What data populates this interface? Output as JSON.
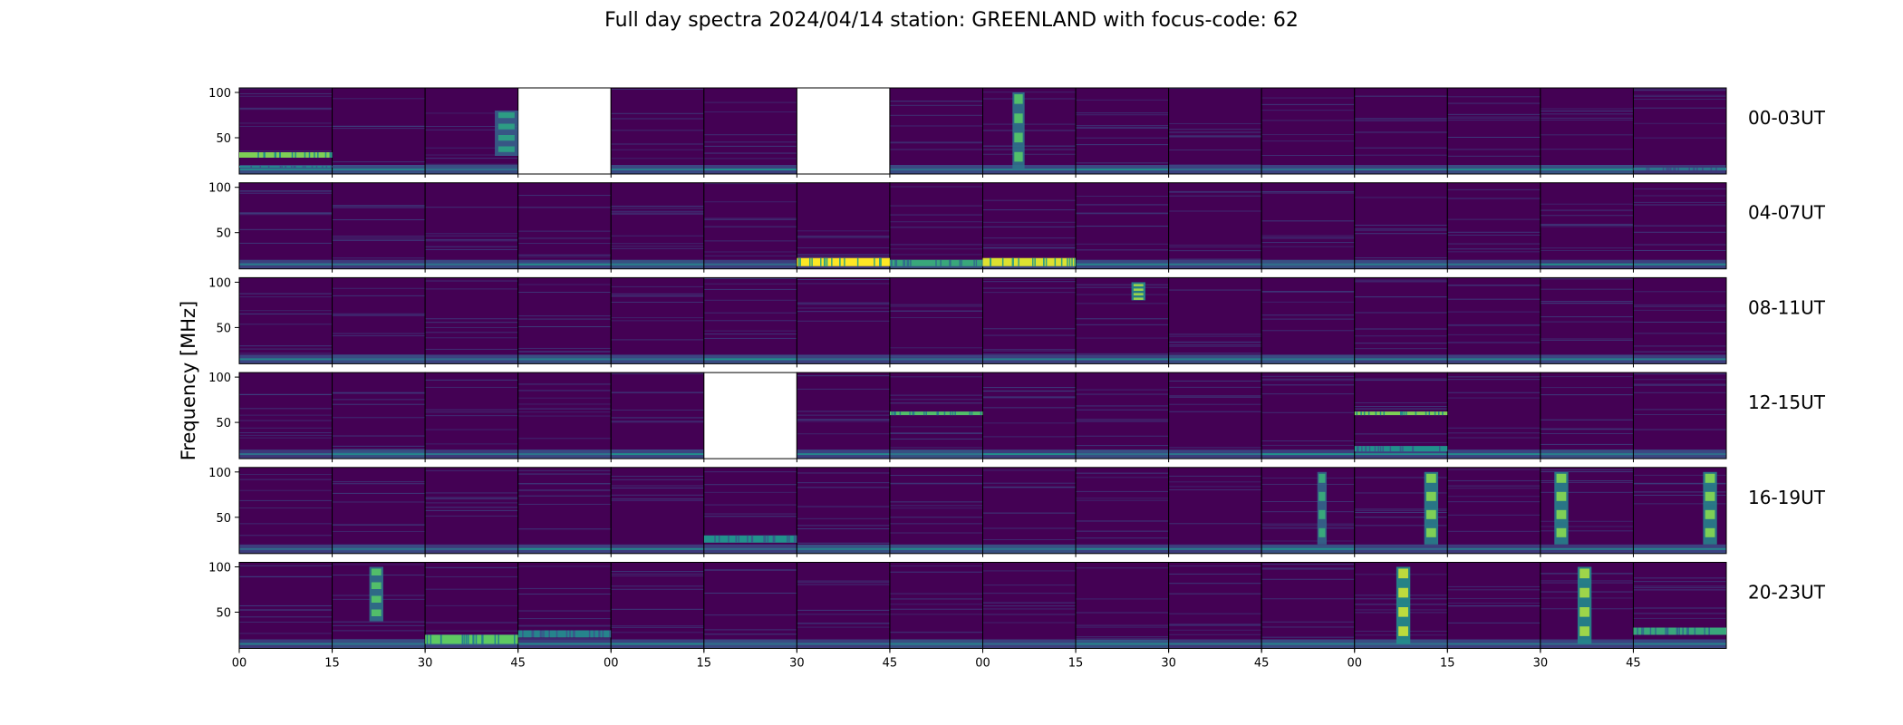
{
  "title": "Full day spectra 2024/04/14 station: GREENLAND with focus-code: 62",
  "ylabel": "Frequency [MHz]",
  "colors": {
    "background": "#440154",
    "bar": "#fde725",
    "teal": "#21918c",
    "green": "#5ec962",
    "line": "#2c6f8e"
  },
  "chart_data": {
    "type": "heatmap",
    "colormap": "viridis",
    "rows": [
      "00-03UT",
      "04-07UT",
      "08-11UT",
      "12-15UT",
      "16-19UT",
      "20-23UT"
    ],
    "panels_per_row": 16,
    "minutes_per_panel": 15,
    "y_ticks": [
      100,
      50
    ],
    "ylim": [
      10,
      105
    ],
    "x_tick_labels": [
      "00",
      "15",
      "30",
      "45",
      "00",
      "15",
      "30",
      "45",
      "00",
      "15",
      "30",
      "45",
      "00",
      "15",
      "30",
      "45"
    ],
    "missing_panels": [
      [
        0,
        3
      ],
      [
        0,
        6
      ],
      [
        3,
        5
      ]
    ],
    "features": [
      {
        "row": 0,
        "panel": 0,
        "kind": "band",
        "f_lo": 17,
        "f_hi": 19,
        "level": 0.45
      },
      {
        "row": 0,
        "panel": 0,
        "kind": "band",
        "f_lo": 28,
        "f_hi": 34,
        "level": 0.8
      },
      {
        "row": 0,
        "panel": 2,
        "kind": "burst",
        "t0": 0.75,
        "t1": 1.0,
        "f_lo": 30,
        "f_hi": 80,
        "level": 0.55
      },
      {
        "row": 0,
        "panel": 8,
        "kind": "burst",
        "t0": 0.32,
        "t1": 0.45,
        "f_lo": 15,
        "f_hi": 100,
        "level": 0.7
      },
      {
        "row": 0,
        "panel": 15,
        "kind": "band",
        "f_lo": 14,
        "f_hi": 17,
        "level": 0.4
      },
      {
        "row": 1,
        "panel": 6,
        "kind": "band",
        "f_lo": 13,
        "f_hi": 22,
        "level": 1.0
      },
      {
        "row": 1,
        "panel": 7,
        "kind": "band",
        "f_lo": 13,
        "f_hi": 20,
        "level": 0.6
      },
      {
        "row": 1,
        "panel": 8,
        "kind": "band",
        "f_lo": 13,
        "f_hi": 22,
        "level": 0.95
      },
      {
        "row": 2,
        "panel": 9,
        "kind": "burst",
        "t0": 0.6,
        "t1": 0.75,
        "f_lo": 80,
        "f_hi": 100,
        "level": 0.85
      },
      {
        "row": 3,
        "panel": 7,
        "kind": "band",
        "f_lo": 58,
        "f_hi": 62,
        "level": 0.7
      },
      {
        "row": 3,
        "panel": 12,
        "kind": "band",
        "f_lo": 58,
        "f_hi": 62,
        "level": 0.8
      },
      {
        "row": 3,
        "panel": 12,
        "kind": "band",
        "f_lo": 18,
        "f_hi": 24,
        "level": 0.5
      },
      {
        "row": 4,
        "panel": 5,
        "kind": "band",
        "f_lo": 22,
        "f_hi": 30,
        "level": 0.5
      },
      {
        "row": 4,
        "panel": 11,
        "kind": "burst",
        "t0": 0.6,
        "t1": 0.7,
        "f_lo": 20,
        "f_hi": 100,
        "level": 0.6
      },
      {
        "row": 4,
        "panel": 12,
        "kind": "burst",
        "t0": 0.75,
        "t1": 0.9,
        "f_lo": 20,
        "f_hi": 100,
        "level": 0.8
      },
      {
        "row": 4,
        "panel": 14,
        "kind": "burst",
        "t0": 0.15,
        "t1": 0.3,
        "f_lo": 20,
        "f_hi": 100,
        "level": 0.8
      },
      {
        "row": 4,
        "panel": 15,
        "kind": "burst",
        "t0": 0.75,
        "t1": 0.9,
        "f_lo": 20,
        "f_hi": 100,
        "level": 0.8
      },
      {
        "row": 5,
        "panel": 1,
        "kind": "burst",
        "t0": 0.4,
        "t1": 0.55,
        "f_lo": 40,
        "f_hi": 100,
        "level": 0.7
      },
      {
        "row": 5,
        "panel": 2,
        "kind": "band",
        "f_lo": 15,
        "f_hi": 25,
        "level": 0.75
      },
      {
        "row": 5,
        "panel": 3,
        "kind": "band",
        "f_lo": 22,
        "f_hi": 30,
        "level": 0.45
      },
      {
        "row": 5,
        "panel": 12,
        "kind": "burst",
        "t0": 0.45,
        "t1": 0.6,
        "f_lo": 15,
        "f_hi": 100,
        "level": 0.9
      },
      {
        "row": 5,
        "panel": 14,
        "kind": "burst",
        "t0": 0.4,
        "t1": 0.55,
        "f_lo": 15,
        "f_hi": 100,
        "level": 0.85
      },
      {
        "row": 5,
        "panel": 15,
        "kind": "band",
        "f_lo": 25,
        "f_hi": 33,
        "level": 0.6
      }
    ]
  }
}
